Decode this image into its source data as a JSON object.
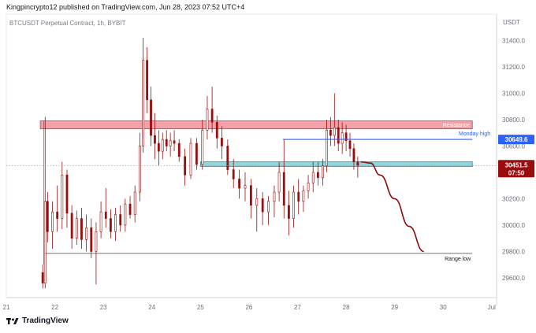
{
  "header": {
    "text": "Kingpincrypto12 published on TradingView.com, Jun 28, 2023 07:52 UTC+4"
  },
  "chart": {
    "symbol_label": "BTCUSDT Perpetual Contract, 1h, BYBIT"
  },
  "footer": {
    "brand": "TradingView"
  },
  "colors": {
    "up": "#9b0d0d",
    "down": "#9b0d0d",
    "resistance": "#f3a1a8",
    "support": "#8fd6dd",
    "monday_line": "#2962ff",
    "current_tag": "#9b0d0d",
    "projection": "#8b0a0a"
  },
  "chart_data": {
    "type": "candlestick",
    "y_axis": {
      "label": "USDT",
      "min": 29450,
      "max": 31600,
      "ticks": [
        "31400.0",
        "31200.0",
        "31000.0",
        "30800.0",
        "30600.0",
        "30200.0",
        "30000.0",
        "29800.0",
        "29600.0"
      ]
    },
    "x_axis": {
      "ticks": [
        "21",
        "22",
        "23",
        "24",
        "25",
        "26",
        "27",
        "28",
        "29",
        "30",
        "Jul"
      ]
    },
    "price_tags": [
      {
        "label": "30649.6",
        "value": 30649.6,
        "color": "#2962ff"
      },
      {
        "label": "30451.5",
        "sub": "07:50",
        "value": 30451.5,
        "color": "#9b0d0d"
      }
    ],
    "zones": [
      {
        "label": "Resistance",
        "from": 30730,
        "to": 30790,
        "x_start": 21.7,
        "x_end": 30.6
      },
      {
        "label": "",
        "from": 30445,
        "to": 30480,
        "x_start": 25.0,
        "x_end": 30.6
      }
    ],
    "lines": [
      {
        "label": "Monday high",
        "value": 30650,
        "x_start": 26.7,
        "x_end": 30.6
      },
      {
        "label": "Range low",
        "value": 29785,
        "x_start": 21.8,
        "x_end": 30.6
      }
    ],
    "projection": [
      [
        28.3,
        30480
      ],
      [
        28.5,
        30470
      ],
      [
        28.7,
        30380
      ],
      [
        29.0,
        30200
      ],
      [
        29.3,
        29990
      ],
      [
        29.6,
        29800
      ]
    ],
    "candles": [
      [
        21.75,
        29640,
        29700,
        29520,
        29560
      ],
      [
        21.8,
        29560,
        30820,
        29520,
        30180
      ],
      [
        21.85,
        30180,
        30250,
        29870,
        29950
      ],
      [
        21.95,
        29950,
        30180,
        29820,
        30100
      ],
      [
        22.05,
        30100,
        30300,
        29950,
        30050
      ],
      [
        22.15,
        30050,
        30480,
        29970,
        30380
      ],
      [
        22.25,
        30380,
        30420,
        29980,
        30090
      ],
      [
        22.35,
        30090,
        30150,
        29820,
        29900
      ],
      [
        22.45,
        29900,
        30110,
        29850,
        30050
      ],
      [
        22.55,
        30050,
        30130,
        29820,
        29890
      ],
      [
        22.65,
        29890,
        30080,
        29800,
        29980
      ],
      [
        22.75,
        29980,
        30050,
        29750,
        29800
      ],
      [
        22.85,
        29800,
        30020,
        29550,
        29950
      ],
      [
        22.95,
        29950,
        30180,
        29900,
        30100
      ],
      [
        23.05,
        30100,
        30280,
        29980,
        30050
      ],
      [
        23.15,
        30050,
        30120,
        29900,
        29950
      ],
      [
        23.25,
        29950,
        30130,
        29880,
        30080
      ],
      [
        23.35,
        30080,
        30150,
        29950,
        30000
      ],
      [
        23.45,
        30000,
        30200,
        29950,
        30160
      ],
      [
        23.55,
        30160,
        30220,
        30050,
        30080
      ],
      [
        23.65,
        30080,
        30300,
        30020,
        30250
      ],
      [
        23.75,
        30250,
        30700,
        30180,
        30600
      ],
      [
        23.82,
        30600,
        31420,
        30550,
        31250
      ],
      [
        23.9,
        31250,
        31350,
        30850,
        30950
      ],
      [
        23.98,
        30950,
        31050,
        30600,
        30680
      ],
      [
        24.06,
        30680,
        30850,
        30500,
        30620
      ],
      [
        24.14,
        30620,
        30720,
        30450,
        30560
      ],
      [
        24.22,
        30560,
        30700,
        30500,
        30650
      ],
      [
        24.3,
        30650,
        30720,
        30560,
        30600
      ],
      [
        24.38,
        30600,
        30700,
        30520,
        30640
      ],
      [
        24.46,
        30640,
        30720,
        30560,
        30620
      ],
      [
        24.56,
        30620,
        30650,
        30480,
        30520
      ],
      [
        24.68,
        30520,
        30580,
        30300,
        30380
      ],
      [
        24.8,
        30380,
        30660,
        30350,
        30620
      ],
      [
        24.92,
        30620,
        30660,
        30420,
        30460
      ],
      [
        25.04,
        30460,
        30800,
        30420,
        30720
      ],
      [
        25.14,
        30720,
        30980,
        30650,
        30880
      ],
      [
        25.24,
        30880,
        31050,
        30700,
        30780
      ],
      [
        25.34,
        30780,
        30830,
        30580,
        30660
      ],
      [
        25.44,
        30660,
        30750,
        30500,
        30600
      ],
      [
        25.56,
        30600,
        30650,
        30380,
        30420
      ],
      [
        25.68,
        30420,
        30500,
        30280,
        30350
      ],
      [
        25.8,
        30350,
        30420,
        30200,
        30280
      ],
      [
        25.92,
        30280,
        30400,
        30180,
        30300
      ],
      [
        26.04,
        30300,
        30350,
        30050,
        30150
      ],
      [
        26.16,
        30150,
        30280,
        29950,
        30200
      ],
      [
        26.28,
        30200,
        30250,
        30000,
        30100
      ],
      [
        26.4,
        30100,
        30220,
        30000,
        30180
      ],
      [
        26.52,
        30180,
        30300,
        30060,
        30250
      ],
      [
        26.62,
        30250,
        30480,
        30180,
        30400
      ],
      [
        26.72,
        30400,
        30650,
        30050,
        30150
      ],
      [
        26.82,
        30150,
        30260,
        29920,
        30050
      ],
      [
        26.92,
        30050,
        30300,
        29980,
        30250
      ],
      [
        27.02,
        30250,
        30350,
        30080,
        30180
      ],
      [
        27.12,
        30180,
        30300,
        30100,
        30260
      ],
      [
        27.22,
        30260,
        30380,
        30200,
        30320
      ],
      [
        27.32,
        30320,
        30480,
        30250,
        30400
      ],
      [
        27.42,
        30400,
        30480,
        30300,
        30360
      ],
      [
        27.52,
        30360,
        30500,
        30300,
        30450
      ],
      [
        27.6,
        30450,
        30800,
        30400,
        30720
      ],
      [
        27.68,
        30720,
        30820,
        30600,
        30680
      ],
      [
        27.76,
        30680,
        31000,
        30600,
        30740
      ],
      [
        27.84,
        30740,
        30800,
        30560,
        30620
      ],
      [
        27.92,
        30620,
        30780,
        30540,
        30700
      ],
      [
        28.0,
        30700,
        30760,
        30560,
        30640
      ],
      [
        28.08,
        30640,
        30700,
        30520,
        30580
      ],
      [
        28.16,
        30580,
        30620,
        30420,
        30480
      ],
      [
        28.24,
        30480,
        30520,
        30360,
        30451
      ]
    ]
  }
}
